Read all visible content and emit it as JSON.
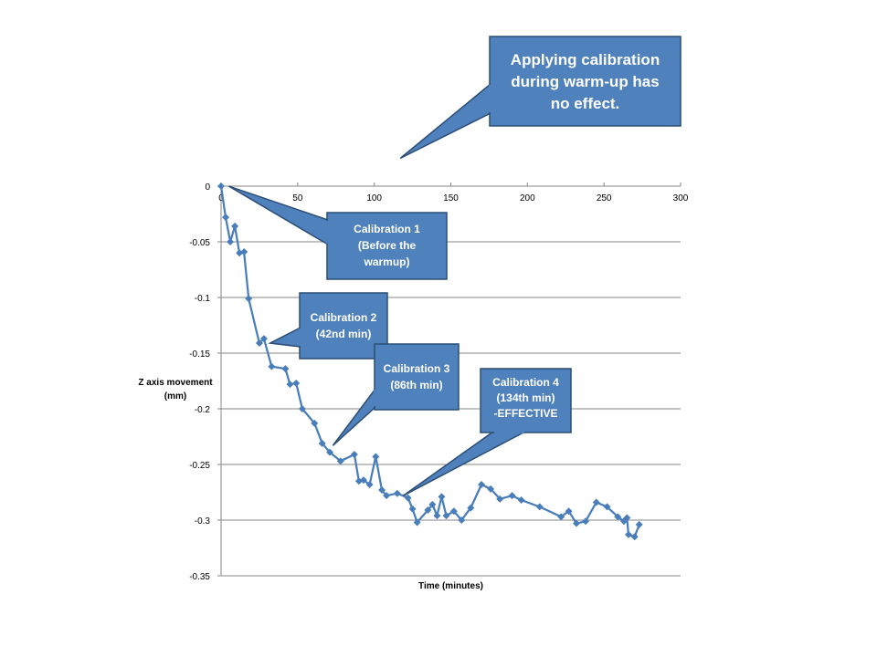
{
  "chart_data": {
    "type": "line",
    "title": "",
    "xlabel": "Time (minutes)",
    "ylabel_lines": [
      "Z axis  movement",
      "(mm)"
    ],
    "xlim": [
      0,
      300
    ],
    "ylim": [
      -0.35,
      0
    ],
    "xticks": [
      0,
      50,
      100,
      150,
      200,
      250,
      300
    ],
    "yticks": [
      0,
      -0.05,
      -0.1,
      -0.15,
      -0.2,
      -0.25,
      -0.3,
      -0.35
    ],
    "ytick_labels": [
      "0",
      "-0.05",
      "-0.1",
      "-0.15",
      "-0.2",
      "-0.25",
      "-0.3",
      "-0.35"
    ],
    "grid": "horizontal",
    "series_color": "#4a7ebb",
    "series": [
      {
        "name": "Z axis movement",
        "points": [
          [
            0,
            0
          ],
          [
            3,
            -0.028
          ],
          [
            6,
            -0.05
          ],
          [
            9,
            -0.036
          ],
          [
            12,
            -0.06
          ],
          [
            15,
            -0.059
          ],
          [
            18,
            -0.101
          ],
          [
            25,
            -0.141
          ],
          [
            28,
            -0.137
          ],
          [
            33,
            -0.162
          ],
          [
            42,
            -0.164
          ],
          [
            45,
            -0.178
          ],
          [
            49,
            -0.177
          ],
          [
            53,
            -0.2
          ],
          [
            61,
            -0.213
          ],
          [
            66,
            -0.231
          ],
          [
            71,
            -0.239
          ],
          [
            78,
            -0.247
          ],
          [
            87,
            -0.241
          ],
          [
            90,
            -0.265
          ],
          [
            93,
            -0.264
          ],
          [
            97,
            -0.268
          ],
          [
            101,
            -0.243
          ],
          [
            105,
            -0.273
          ],
          [
            108,
            -0.278
          ],
          [
            115,
            -0.276
          ],
          [
            122,
            -0.28
          ],
          [
            125,
            -0.29
          ],
          [
            128,
            -0.302
          ],
          [
            135,
            -0.291
          ],
          [
            138,
            -0.286
          ],
          [
            141,
            -0.296
          ],
          [
            144,
            -0.279
          ],
          [
            147,
            -0.296
          ],
          [
            152,
            -0.292
          ],
          [
            157,
            -0.3
          ],
          [
            163,
            -0.289
          ],
          [
            170,
            -0.268
          ],
          [
            176,
            -0.272
          ],
          [
            182,
            -0.281
          ],
          [
            190,
            -0.278
          ],
          [
            196,
            -0.282
          ],
          [
            208,
            -0.288
          ],
          [
            222,
            -0.297
          ],
          [
            227,
            -0.292
          ],
          [
            232,
            -0.303
          ],
          [
            238,
            -0.301
          ],
          [
            245,
            -0.284
          ],
          [
            252,
            -0.288
          ],
          [
            259,
            -0.297
          ],
          [
            263,
            -0.301
          ],
          [
            265,
            -0.298
          ],
          [
            266,
            -0.313
          ],
          [
            270,
            -0.315
          ],
          [
            273,
            -0.304
          ]
        ]
      }
    ],
    "annotations": [
      {
        "id": "top-note",
        "lines": [
          "Applying calibration",
          "during warm-up has",
          "no effect."
        ],
        "target_x": 117,
        "target_y": 0.025
      },
      {
        "id": "calibration-1",
        "lines": [
          "Calibration 1",
          "(Before the",
          "warmup)"
        ],
        "target_x": 5,
        "target_y": 0
      },
      {
        "id": "calibration-2",
        "lines": [
          "Calibration 2",
          "(42nd min)"
        ],
        "target_x": 32,
        "target_y": -0.141
      },
      {
        "id": "calibration-3",
        "lines": [
          "Calibration 3",
          "(86th min)"
        ],
        "target_x": 73,
        "target_y": -0.233
      },
      {
        "id": "calibration-4",
        "lines": [
          "Calibration 4",
          "(134th min)",
          "-EFFECTIVE"
        ],
        "target_x": 119,
        "target_y": -0.278
      }
    ]
  }
}
